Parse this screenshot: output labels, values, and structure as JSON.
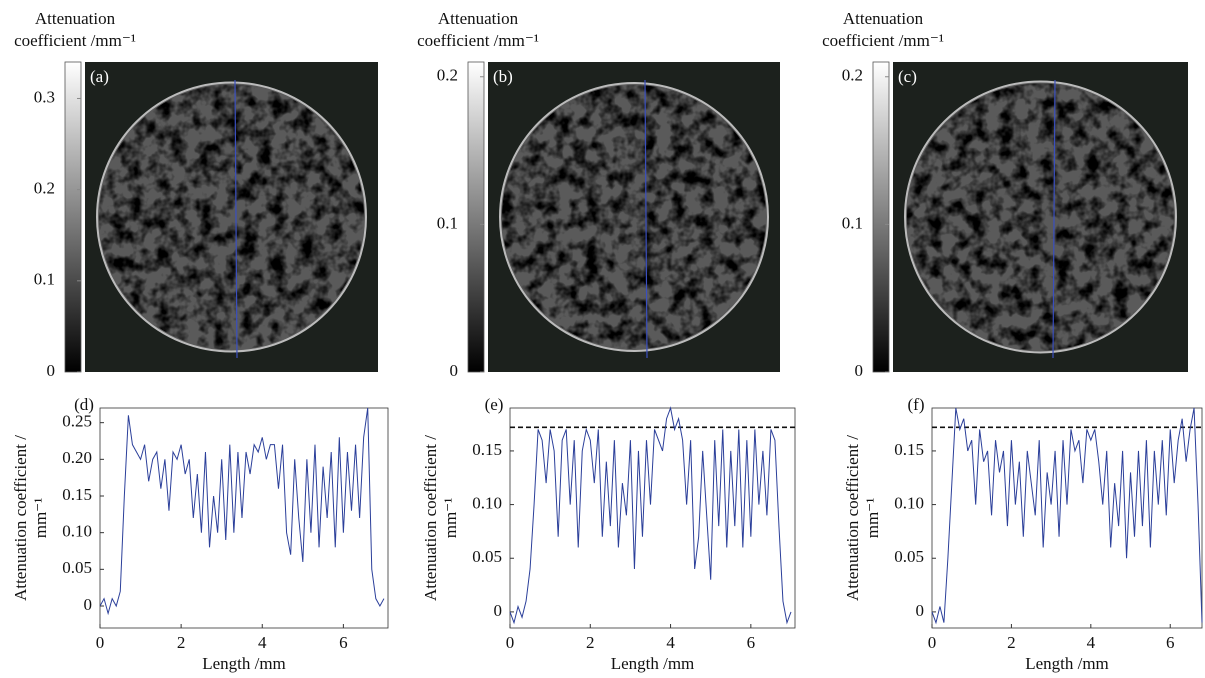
{
  "chart_data": [
    {
      "type": "colorbar",
      "panel_label": "(a)",
      "title": [
        "Attenuation",
        "coefficient /mm⁻¹"
      ],
      "ylim": [
        0,
        0.34
      ],
      "yticks": [
        0,
        0.1,
        0.2,
        0.3
      ]
    },
    {
      "type": "colorbar",
      "panel_label": "(b)",
      "title": [
        "Attenuation",
        "coefficient /mm⁻¹"
      ],
      "ylim": [
        0,
        0.21
      ],
      "yticks": [
        0,
        0.1,
        0.2
      ]
    },
    {
      "type": "colorbar",
      "panel_label": "(c)",
      "title": [
        "Attenuation",
        "coefficient /mm⁻¹"
      ],
      "ylim": [
        0,
        0.21
      ],
      "yticks": [
        0,
        0.1,
        0.2
      ]
    },
    {
      "type": "line",
      "panel_label": "(d)",
      "ylabel": [
        "Attenuation coefficient /",
        "mm⁻¹"
      ],
      "xlabel": "Length /mm",
      "color": "#2b3f9a",
      "xlim": [
        0,
        7.1
      ],
      "ylim": [
        -0.03,
        0.27
      ],
      "xticks": [
        0,
        2,
        4,
        6
      ],
      "yticks": [
        0,
        0.05,
        {
          "value": 0.1,
          "label": "0.10"
        },
        0.15,
        {
          "value": 0.2,
          "label": "0.20"
        },
        0.25
      ],
      "x": [
        0,
        0.1,
        0.2,
        0.3,
        0.4,
        0.5,
        0.6,
        0.7,
        0.8,
        0.9,
        1,
        1.1,
        1.2,
        1.3,
        1.4,
        1.5,
        1.6,
        1.7,
        1.8,
        1.9,
        2,
        2.1,
        2.2,
        2.3,
        2.4,
        2.5,
        2.6,
        2.7,
        2.8,
        2.9,
        3,
        3.1,
        3.2,
        3.3,
        3.4,
        3.5,
        3.6,
        3.7,
        3.8,
        3.9,
        4,
        4.1,
        4.2,
        4.3,
        4.4,
        4.5,
        4.6,
        4.7,
        4.8,
        4.9,
        5,
        5.1,
        5.2,
        5.3,
        5.4,
        5.5,
        5.6,
        5.7,
        5.8,
        5.9,
        6,
        6.1,
        6.2,
        6.3,
        6.4,
        6.5,
        6.6,
        6.7,
        6.8,
        6.9,
        7
      ],
      "values": [
        0,
        0.01,
        -0.01,
        0.01,
        0,
        0.02,
        0.15,
        0.26,
        0.22,
        0.21,
        0.2,
        0.22,
        0.17,
        0.2,
        0.21,
        0.16,
        0.2,
        0.13,
        0.21,
        0.2,
        0.22,
        0.18,
        0.2,
        0.12,
        0.18,
        0.1,
        0.21,
        0.08,
        0.15,
        0.1,
        0.2,
        0.09,
        0.22,
        0.1,
        0.21,
        0.12,
        0.21,
        0.18,
        0.22,
        0.21,
        0.23,
        0.2,
        0.22,
        0.22,
        0.16,
        0.22,
        0.1,
        0.07,
        0.2,
        0.12,
        0.06,
        0.2,
        0.1,
        0.22,
        0.08,
        0.19,
        0.12,
        0.21,
        0.08,
        0.23,
        0.1,
        0.21,
        0.13,
        0.22,
        0.12,
        0.23,
        0.27,
        0.05,
        0.01,
        0,
        0.01
      ]
    },
    {
      "type": "line",
      "panel_label": "(e)",
      "ylabel": [
        "Attenuation coefficient /",
        "mm⁻¹"
      ],
      "xlabel": "Length /mm",
      "color": "#2b3f9a",
      "xlim": [
        0,
        7.1
      ],
      "ylim": [
        -0.015,
        0.19
      ],
      "xticks": [
        0,
        2,
        4,
        6
      ],
      "yticks": [
        0,
        0.05,
        {
          "value": 0.1,
          "label": "0.10"
        },
        0.15
      ],
      "reference_line": 0.172,
      "x": [
        0,
        0.1,
        0.2,
        0.3,
        0.4,
        0.5,
        0.6,
        0.7,
        0.8,
        0.9,
        1,
        1.1,
        1.2,
        1.3,
        1.4,
        1.5,
        1.6,
        1.7,
        1.8,
        1.9,
        2,
        2.1,
        2.2,
        2.3,
        2.4,
        2.5,
        2.6,
        2.7,
        2.8,
        2.9,
        3,
        3.1,
        3.2,
        3.3,
        3.4,
        3.5,
        3.6,
        3.7,
        3.8,
        3.9,
        4,
        4.1,
        4.2,
        4.3,
        4.4,
        4.5,
        4.6,
        4.7,
        4.8,
        4.9,
        5,
        5.1,
        5.2,
        5.3,
        5.4,
        5.5,
        5.6,
        5.7,
        5.8,
        5.9,
        6,
        6.1,
        6.2,
        6.3,
        6.4,
        6.5,
        6.6,
        6.7,
        6.8,
        6.9,
        7
      ],
      "values": [
        0,
        -0.01,
        0.005,
        -0.005,
        0.01,
        0.04,
        0.1,
        0.17,
        0.16,
        0.12,
        0.17,
        0.15,
        0.07,
        0.16,
        0.17,
        0.1,
        0.16,
        0.06,
        0.15,
        0.17,
        0.16,
        0.12,
        0.17,
        0.07,
        0.14,
        0.08,
        0.16,
        0.06,
        0.12,
        0.09,
        0.16,
        0.04,
        0.15,
        0.07,
        0.16,
        0.1,
        0.17,
        0.16,
        0.15,
        0.18,
        0.19,
        0.17,
        0.18,
        0.16,
        0.1,
        0.16,
        0.04,
        0.07,
        0.15,
        0.09,
        0.03,
        0.16,
        0.08,
        0.17,
        0.06,
        0.15,
        0.08,
        0.17,
        0.06,
        0.16,
        0.07,
        0.17,
        0.1,
        0.15,
        0.09,
        0.17,
        0.16,
        0.08,
        0.01,
        -0.01,
        0
      ]
    },
    {
      "type": "line",
      "panel_label": "(f)",
      "ylabel": [
        "Attenuation coefficient /",
        "mm⁻¹"
      ],
      "xlabel": "Length /mm",
      "color": "#2b3f9a",
      "xlim": [
        0,
        6.8
      ],
      "ylim": [
        -0.015,
        0.19
      ],
      "xticks": [
        0,
        2,
        4,
        6
      ],
      "yticks": [
        0,
        0.05,
        {
          "value": 0.1,
          "label": "0.10"
        },
        0.15
      ],
      "reference_line": 0.172,
      "x": [
        0,
        0.1,
        0.2,
        0.3,
        0.4,
        0.5,
        0.6,
        0.7,
        0.8,
        0.9,
        1,
        1.1,
        1.2,
        1.3,
        1.4,
        1.5,
        1.6,
        1.7,
        1.8,
        1.9,
        2,
        2.1,
        2.2,
        2.3,
        2.4,
        2.5,
        2.6,
        2.7,
        2.8,
        2.9,
        3,
        3.1,
        3.2,
        3.3,
        3.4,
        3.5,
        3.6,
        3.7,
        3.8,
        3.9,
        4,
        4.1,
        4.2,
        4.3,
        4.4,
        4.5,
        4.6,
        4.7,
        4.8,
        4.9,
        5,
        5.1,
        5.2,
        5.3,
        5.4,
        5.5,
        5.6,
        5.7,
        5.8,
        5.9,
        6,
        6.1,
        6.2,
        6.3,
        6.4,
        6.5,
        6.6,
        6.7,
        6.8
      ],
      "values": [
        0,
        -0.01,
        0.005,
        -0.01,
        0.05,
        0.12,
        0.19,
        0.17,
        0.18,
        0.15,
        0.16,
        0.1,
        0.17,
        0.14,
        0.15,
        0.09,
        0.16,
        0.13,
        0.15,
        0.08,
        0.16,
        0.1,
        0.14,
        0.07,
        0.15,
        0.12,
        0.09,
        0.16,
        0.06,
        0.13,
        0.1,
        0.15,
        0.07,
        0.16,
        0.1,
        0.17,
        0.15,
        0.16,
        0.12,
        0.17,
        0.16,
        0.17,
        0.14,
        0.1,
        0.15,
        0.06,
        0.12,
        0.08,
        0.15,
        0.05,
        0.13,
        0.07,
        0.15,
        0.08,
        0.16,
        0.06,
        0.15,
        0.1,
        0.16,
        0.09,
        0.17,
        0.12,
        0.16,
        0.18,
        0.14,
        0.17,
        0.19,
        0.1,
        -0.01
      ]
    }
  ]
}
